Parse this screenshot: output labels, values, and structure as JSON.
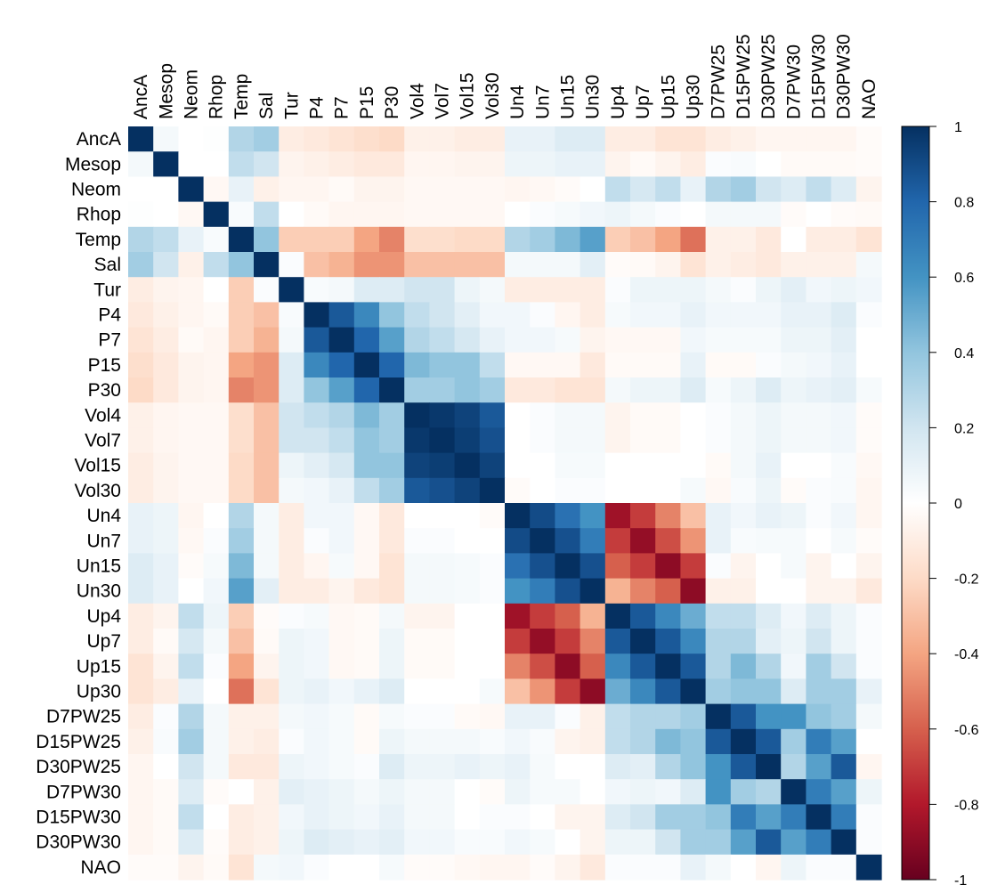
{
  "chart_data": {
    "type": "heatmap",
    "title": "",
    "xlabel": "",
    "ylabel": "",
    "variables": [
      "AncA",
      "Mesop",
      "Neom",
      "Rhop",
      "Temp",
      "Sal",
      "Tur",
      "P4",
      "P7",
      "P15",
      "P30",
      "Vol4",
      "Vol7",
      "Vol15",
      "Vol30",
      "Un4",
      "Un7",
      "Un15",
      "Un30",
      "Up4",
      "Up7",
      "Up15",
      "Up30",
      "D7PW25",
      "D15PW25",
      "D30PW25",
      "D7PW30",
      "D15PW30",
      "D30PW30",
      "NAO"
    ],
    "value_range": [
      -1,
      1
    ],
    "colorbar_ticks": [
      1,
      0.8,
      0.6,
      0.4,
      0.2,
      0,
      -0.2,
      -0.4,
      -0.6,
      -0.8,
      -1
    ],
    "colorbar_tick_labels": [
      "1",
      "0.8",
      "0.6",
      "0.4",
      "0.2",
      "0",
      "-0.2",
      "-0.4",
      "-0.6",
      "-0.8",
      "-1"
    ],
    "colorscale": [
      "#67001f",
      "#b2182b",
      "#d6604d",
      "#f4a582",
      "#fddbc7",
      "#ffffff",
      "#d1e5f0",
      "#92c5de",
      "#4393c3",
      "#2166ac",
      "#053061"
    ],
    "legend_position": "right",
    "matrix": [
      [
        1.0,
        0.05,
        0.0,
        0.01,
        0.3,
        0.35,
        -0.1,
        -0.12,
        -0.15,
        -0.18,
        -0.2,
        -0.08,
        -0.08,
        -0.1,
        -0.1,
        0.1,
        0.1,
        0.15,
        0.15,
        -0.1,
        -0.1,
        -0.15,
        -0.15,
        -0.1,
        -0.08,
        -0.05,
        -0.05,
        -0.05,
        -0.05,
        -0.02
      ],
      [
        0.05,
        1.0,
        0.0,
        0.0,
        0.25,
        0.2,
        -0.06,
        -0.08,
        -0.1,
        -0.12,
        -0.12,
        -0.05,
        -0.05,
        -0.06,
        -0.06,
        0.08,
        0.08,
        0.1,
        0.1,
        -0.06,
        -0.03,
        -0.06,
        -0.1,
        0.02,
        0.03,
        0.0,
        -0.03,
        -0.03,
        -0.03,
        -0.02
      ],
      [
        0.0,
        0.0,
        1.0,
        -0.04,
        0.1,
        -0.08,
        -0.05,
        -0.05,
        -0.03,
        -0.06,
        -0.06,
        -0.04,
        -0.04,
        -0.04,
        -0.04,
        -0.05,
        -0.04,
        -0.02,
        0.0,
        0.25,
        0.18,
        0.25,
        0.1,
        0.3,
        0.35,
        0.2,
        0.15,
        0.25,
        0.15,
        -0.06
      ],
      [
        0.01,
        0.0,
        -0.04,
        1.0,
        0.03,
        0.25,
        0.0,
        -0.03,
        -0.05,
        -0.05,
        -0.05,
        -0.04,
        -0.04,
        -0.04,
        -0.04,
        0.0,
        0.02,
        0.04,
        0.06,
        0.08,
        0.05,
        0.02,
        0.0,
        0.05,
        0.05,
        0.05,
        -0.02,
        0.0,
        -0.02,
        -0.03
      ],
      [
        0.3,
        0.25,
        0.1,
        0.03,
        1.0,
        0.4,
        -0.25,
        -0.25,
        -0.25,
        -0.4,
        -0.5,
        -0.18,
        -0.18,
        -0.2,
        -0.2,
        0.3,
        0.35,
        0.45,
        0.55,
        -0.25,
        -0.3,
        -0.4,
        -0.55,
        -0.08,
        -0.08,
        -0.12,
        0.0,
        -0.1,
        -0.1,
        -0.15
      ],
      [
        0.35,
        0.2,
        -0.08,
        0.25,
        0.4,
        1.0,
        0.02,
        -0.3,
        -0.35,
        -0.45,
        -0.45,
        -0.3,
        -0.3,
        -0.3,
        -0.3,
        0.05,
        0.05,
        0.05,
        0.12,
        -0.02,
        -0.03,
        -0.06,
        -0.15,
        -0.08,
        -0.1,
        -0.12,
        -0.08,
        -0.08,
        -0.08,
        0.05
      ],
      [
        -0.1,
        -0.06,
        -0.05,
        0.0,
        -0.25,
        0.02,
        1.0,
        0.03,
        0.05,
        0.15,
        0.15,
        0.2,
        0.2,
        0.08,
        0.05,
        -0.1,
        -0.1,
        -0.1,
        -0.1,
        0.02,
        0.08,
        0.08,
        0.08,
        0.05,
        0.02,
        0.08,
        0.12,
        0.06,
        0.08,
        0.06
      ],
      [
        -0.12,
        -0.08,
        -0.05,
        -0.03,
        -0.25,
        -0.3,
        0.03,
        1.0,
        0.85,
        0.65,
        0.4,
        0.25,
        0.2,
        0.12,
        0.06,
        0.06,
        0.02,
        -0.05,
        -0.1,
        0.04,
        0.06,
        0.06,
        0.1,
        0.06,
        0.06,
        0.06,
        0.1,
        0.1,
        0.15,
        0.02
      ],
      [
        -0.15,
        -0.1,
        -0.03,
        -0.05,
        -0.25,
        -0.35,
        0.05,
        0.85,
        1.0,
        0.8,
        0.55,
        0.3,
        0.25,
        0.18,
        0.1,
        0.06,
        0.06,
        0.04,
        -0.06,
        -0.04,
        -0.04,
        -0.04,
        0.06,
        0.04,
        0.04,
        0.04,
        0.08,
        0.08,
        0.12,
        0.0
      ],
      [
        -0.18,
        -0.12,
        -0.06,
        -0.05,
        -0.4,
        -0.45,
        0.15,
        0.65,
        0.8,
        1.0,
        0.8,
        0.45,
        0.4,
        0.4,
        0.25,
        -0.04,
        -0.04,
        -0.04,
        -0.12,
        -0.03,
        -0.03,
        -0.03,
        0.1,
        -0.03,
        -0.03,
        0.02,
        0.05,
        0.06,
        0.1,
        0.0
      ],
      [
        -0.2,
        -0.12,
        -0.06,
        -0.05,
        -0.5,
        -0.45,
        0.15,
        0.4,
        0.55,
        0.8,
        1.0,
        0.35,
        0.35,
        0.4,
        0.35,
        -0.12,
        -0.12,
        -0.15,
        -0.15,
        0.05,
        0.08,
        0.08,
        0.15,
        0.04,
        0.08,
        0.15,
        0.08,
        0.1,
        0.12,
        0.04
      ],
      [
        -0.08,
        -0.05,
        -0.04,
        -0.04,
        -0.18,
        -0.3,
        0.2,
        0.25,
        0.3,
        0.45,
        0.35,
        1.0,
        0.97,
        0.93,
        0.85,
        0.0,
        0.02,
        0.05,
        0.05,
        -0.06,
        -0.03,
        -0.03,
        0.0,
        0.02,
        0.05,
        0.08,
        0.05,
        0.05,
        0.06,
        -0.02
      ],
      [
        -0.08,
        -0.05,
        -0.04,
        -0.04,
        -0.18,
        -0.3,
        0.2,
        0.2,
        0.25,
        0.4,
        0.35,
        0.97,
        1.0,
        0.95,
        0.88,
        0.0,
        0.02,
        0.05,
        0.05,
        -0.06,
        -0.03,
        -0.03,
        0.0,
        0.02,
        0.05,
        0.08,
        0.05,
        0.05,
        0.06,
        -0.02
      ],
      [
        -0.1,
        -0.06,
        -0.04,
        -0.04,
        -0.2,
        -0.3,
        0.08,
        0.12,
        0.18,
        0.4,
        0.4,
        0.93,
        0.95,
        1.0,
        0.93,
        0.0,
        0.0,
        0.04,
        0.04,
        0.0,
        0.0,
        0.0,
        0.0,
        -0.03,
        0.05,
        0.1,
        0.0,
        0.0,
        0.03,
        -0.04
      ],
      [
        -0.1,
        -0.06,
        -0.04,
        -0.04,
        -0.2,
        -0.3,
        0.05,
        0.06,
        0.1,
        0.25,
        0.35,
        0.85,
        0.88,
        0.93,
        1.0,
        -0.02,
        0.0,
        0.02,
        0.02,
        0.0,
        0.0,
        0.0,
        0.04,
        -0.04,
        0.03,
        0.08,
        -0.02,
        0.02,
        0.03,
        -0.05
      ],
      [
        0.1,
        0.08,
        -0.05,
        0.0,
        0.3,
        0.05,
        -0.1,
        0.06,
        0.06,
        -0.04,
        -0.12,
        0.0,
        0.0,
        0.0,
        -0.02,
        1.0,
        0.9,
        0.75,
        0.6,
        -0.85,
        -0.7,
        -0.5,
        -0.3,
        0.1,
        0.06,
        0.1,
        0.08,
        0.02,
        0.06,
        -0.05
      ],
      [
        0.1,
        0.08,
        -0.04,
        0.02,
        0.35,
        0.05,
        -0.1,
        0.02,
        0.06,
        -0.04,
        -0.12,
        0.02,
        0.02,
        0.0,
        0.0,
        0.9,
        1.0,
        0.88,
        0.7,
        -0.7,
        -0.88,
        -0.65,
        -0.45,
        0.1,
        0.03,
        0.04,
        0.04,
        0.0,
        0.04,
        -0.02
      ],
      [
        0.15,
        0.1,
        -0.02,
        0.04,
        0.45,
        0.05,
        -0.1,
        -0.05,
        0.04,
        -0.04,
        -0.15,
        0.05,
        0.05,
        0.04,
        0.02,
        0.75,
        0.88,
        1.0,
        0.88,
        -0.6,
        -0.7,
        -0.9,
        -0.7,
        0.02,
        -0.06,
        0.0,
        0.04,
        -0.06,
        0.0,
        -0.06
      ],
      [
        0.15,
        0.1,
        0.0,
        0.06,
        0.55,
        0.12,
        -0.1,
        -0.1,
        -0.06,
        -0.12,
        -0.15,
        0.05,
        0.05,
        0.04,
        0.02,
        0.6,
        0.7,
        0.88,
        1.0,
        -0.35,
        -0.5,
        -0.6,
        -0.9,
        -0.08,
        -0.08,
        0.0,
        0.0,
        -0.06,
        -0.06,
        -0.12
      ],
      [
        -0.1,
        -0.06,
        0.25,
        0.08,
        -0.25,
        -0.02,
        0.02,
        0.04,
        -0.04,
        -0.03,
        0.05,
        -0.06,
        -0.06,
        0.0,
        0.0,
        -0.85,
        -0.7,
        -0.6,
        -0.35,
        1.0,
        0.85,
        0.65,
        0.5,
        0.25,
        0.25,
        0.15,
        0.06,
        0.15,
        0.08,
        0.02
      ],
      [
        -0.1,
        -0.03,
        0.18,
        0.05,
        -0.3,
        -0.03,
        0.08,
        0.06,
        -0.04,
        -0.03,
        0.08,
        -0.03,
        -0.03,
        0.0,
        0.0,
        -0.7,
        -0.88,
        -0.7,
        -0.5,
        0.85,
        1.0,
        0.85,
        0.65,
        0.3,
        0.3,
        0.12,
        0.08,
        0.2,
        0.08,
        0.02
      ],
      [
        -0.15,
        -0.06,
        0.25,
        0.02,
        -0.4,
        -0.06,
        0.08,
        0.06,
        -0.04,
        -0.03,
        0.08,
        -0.03,
        -0.03,
        0.0,
        0.0,
        -0.5,
        -0.65,
        -0.9,
        -0.6,
        0.65,
        0.85,
        1.0,
        0.85,
        0.3,
        0.45,
        0.3,
        0.06,
        0.35,
        0.2,
        0.02
      ],
      [
        -0.15,
        -0.1,
        0.1,
        0.0,
        -0.55,
        -0.15,
        0.08,
        0.1,
        0.06,
        0.1,
        0.15,
        0.0,
        0.0,
        0.0,
        0.04,
        -0.3,
        -0.45,
        -0.7,
        -0.9,
        0.5,
        0.65,
        0.85,
        1.0,
        0.35,
        0.4,
        0.4,
        0.15,
        0.35,
        0.35,
        0.1
      ],
      [
        -0.1,
        0.02,
        0.3,
        0.05,
        -0.08,
        -0.08,
        0.05,
        0.06,
        0.04,
        -0.03,
        0.04,
        0.02,
        0.02,
        -0.03,
        -0.04,
        0.1,
        0.1,
        0.02,
        -0.08,
        0.25,
        0.3,
        0.3,
        0.35,
        1.0,
        0.85,
        0.6,
        0.6,
        0.4,
        0.35,
        0.05
      ],
      [
        -0.08,
        0.03,
        0.35,
        0.05,
        -0.08,
        -0.1,
        0.02,
        0.06,
        0.04,
        -0.03,
        0.08,
        0.05,
        0.05,
        0.05,
        0.03,
        0.06,
        0.03,
        -0.06,
        -0.08,
        0.25,
        0.3,
        0.45,
        0.4,
        0.85,
        1.0,
        0.85,
        0.35,
        0.7,
        0.55,
        0.0
      ],
      [
        -0.05,
        0.0,
        0.2,
        0.05,
        -0.12,
        -0.12,
        0.08,
        0.06,
        0.04,
        0.02,
        0.15,
        0.08,
        0.08,
        0.1,
        0.08,
        0.1,
        0.04,
        0.0,
        0.0,
        0.15,
        0.12,
        0.3,
        0.4,
        0.6,
        0.85,
        1.0,
        0.3,
        0.55,
        0.85,
        -0.05
      ],
      [
        -0.05,
        -0.03,
        0.15,
        -0.02,
        0.0,
        -0.08,
        0.12,
        0.1,
        0.08,
        0.05,
        0.08,
        0.05,
        0.05,
        0.0,
        -0.02,
        0.08,
        0.04,
        0.04,
        0.0,
        0.06,
        0.08,
        0.06,
        0.15,
        0.6,
        0.35,
        0.3,
        1.0,
        0.7,
        0.55,
        0.08
      ],
      [
        -0.05,
        -0.03,
        0.25,
        0.0,
        -0.1,
        -0.08,
        0.06,
        0.1,
        0.08,
        0.06,
        0.1,
        0.05,
        0.05,
        0.0,
        0.02,
        0.02,
        0.0,
        -0.06,
        -0.06,
        0.15,
        0.2,
        0.35,
        0.35,
        0.4,
        0.7,
        0.55,
        0.7,
        1.0,
        0.7,
        0.02
      ],
      [
        -0.05,
        -0.03,
        0.15,
        -0.02,
        -0.1,
        -0.08,
        0.08,
        0.15,
        0.12,
        0.1,
        0.12,
        0.06,
        0.06,
        0.03,
        0.03,
        0.06,
        0.04,
        0.0,
        -0.06,
        0.08,
        0.08,
        0.2,
        0.35,
        0.35,
        0.55,
        0.85,
        0.55,
        0.7,
        1.0,
        0.02
      ],
      [
        -0.02,
        -0.02,
        -0.06,
        -0.03,
        -0.15,
        0.05,
        0.06,
        0.02,
        0.0,
        0.0,
        0.04,
        -0.02,
        -0.02,
        -0.04,
        -0.05,
        -0.05,
        -0.02,
        -0.06,
        -0.12,
        0.02,
        0.02,
        0.02,
        0.1,
        0.05,
        0.0,
        -0.05,
        0.08,
        0.02,
        0.02,
        1.0
      ]
    ]
  }
}
